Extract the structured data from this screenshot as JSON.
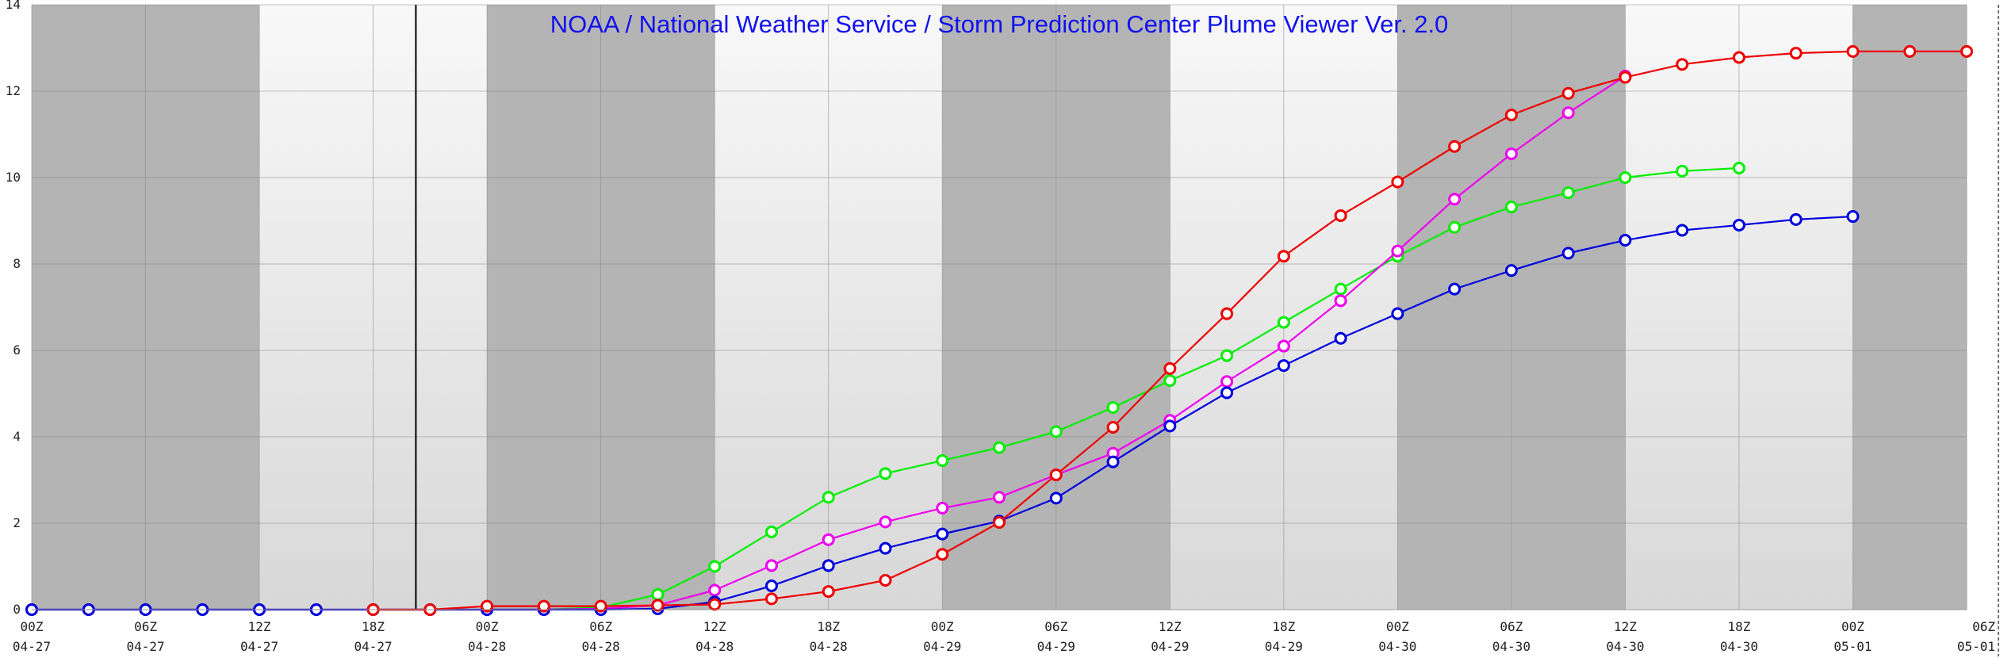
{
  "chart_data": {
    "type": "line",
    "title": "NOAA / National Weather Service / Storm Prediction Center Plume Viewer Ver. 2.0",
    "xlabel": "",
    "ylabel": "",
    "ylim": [
      0,
      14
    ],
    "y_ticks": [
      0,
      2,
      4,
      6,
      8,
      10,
      12,
      14
    ],
    "y_tick_labels": [
      "0",
      "2",
      "4",
      "6",
      "8",
      "10",
      "12",
      "14"
    ],
    "x_unit": "hours",
    "xlim": [
      0,
      102
    ],
    "x_ticks": [
      {
        "x": 0,
        "time": "00Z",
        "date": "04-27"
      },
      {
        "x": 6,
        "time": "06Z",
        "date": "04-27"
      },
      {
        "x": 12,
        "time": "12Z",
        "date": "04-27"
      },
      {
        "x": 18,
        "time": "18Z",
        "date": "04-27"
      },
      {
        "x": 24,
        "time": "00Z",
        "date": "04-28"
      },
      {
        "x": 30,
        "time": "06Z",
        "date": "04-28"
      },
      {
        "x": 36,
        "time": "12Z",
        "date": "04-28"
      },
      {
        "x": 42,
        "time": "18Z",
        "date": "04-28"
      },
      {
        "x": 48,
        "time": "00Z",
        "date": "04-29"
      },
      {
        "x": 54,
        "time": "06Z",
        "date": "04-29"
      },
      {
        "x": 60,
        "time": "12Z",
        "date": "04-29"
      },
      {
        "x": 66,
        "time": "18Z",
        "date": "04-29"
      },
      {
        "x": 72,
        "time": "00Z",
        "date": "04-30"
      },
      {
        "x": 78,
        "time": "06Z",
        "date": "04-30"
      },
      {
        "x": 84,
        "time": "12Z",
        "date": "04-30"
      },
      {
        "x": 90,
        "time": "18Z",
        "date": "04-30"
      },
      {
        "x": 96,
        "time": "00Z",
        "date": "05-01"
      },
      {
        "x": 102,
        "time": "06Z",
        "date": "05-01"
      }
    ],
    "night_shading": [
      [
        0,
        12
      ],
      [
        24,
        36
      ],
      [
        48,
        60
      ],
      [
        72,
        84
      ],
      [
        96,
        102
      ]
    ],
    "marker_line_x": 20.25,
    "grid": true,
    "series": [
      {
        "color": "#00ee00",
        "points": [
          [
            0,
            0
          ],
          [
            3,
            0
          ],
          [
            6,
            0
          ],
          [
            9,
            0
          ],
          [
            12,
            0
          ],
          [
            15,
            0
          ],
          [
            18,
            0
          ],
          [
            21,
            0
          ],
          [
            24,
            0
          ],
          [
            27,
            0
          ],
          [
            30,
            0.05
          ],
          [
            33,
            0.35
          ],
          [
            36,
            1.0
          ],
          [
            39,
            1.8
          ],
          [
            42,
            2.6
          ],
          [
            45,
            3.15
          ],
          [
            48,
            3.45
          ],
          [
            51,
            3.75
          ],
          [
            54,
            4.12
          ],
          [
            57,
            4.68
          ],
          [
            60,
            5.3
          ],
          [
            63,
            5.88
          ],
          [
            66,
            6.65
          ],
          [
            69,
            7.42
          ],
          [
            72,
            8.18
          ],
          [
            75,
            8.85
          ],
          [
            78,
            9.32
          ],
          [
            81,
            9.65
          ],
          [
            84,
            10.0
          ],
          [
            87,
            10.15
          ],
          [
            90,
            10.22
          ]
        ]
      },
      {
        "color": "#ee00ee",
        "points": [
          [
            0,
            0
          ],
          [
            3,
            0
          ],
          [
            6,
            0
          ],
          [
            9,
            0
          ],
          [
            12,
            0
          ],
          [
            15,
            0
          ],
          [
            18,
            0
          ],
          [
            21,
            0
          ],
          [
            24,
            0
          ],
          [
            27,
            0
          ],
          [
            30,
            0.02
          ],
          [
            33,
            0.1
          ],
          [
            36,
            0.45
          ],
          [
            39,
            1.02
          ],
          [
            42,
            1.62
          ],
          [
            45,
            2.03
          ],
          [
            48,
            2.35
          ],
          [
            51,
            2.6
          ],
          [
            54,
            3.12
          ],
          [
            57,
            3.62
          ],
          [
            60,
            4.38
          ],
          [
            63,
            5.28
          ],
          [
            66,
            6.1
          ],
          [
            69,
            7.15
          ],
          [
            72,
            8.3
          ],
          [
            75,
            9.5
          ],
          [
            78,
            10.55
          ],
          [
            81,
            11.5
          ],
          [
            84,
            12.35
          ]
        ]
      },
      {
        "color": "#0000dd",
        "points": [
          [
            0,
            0
          ],
          [
            3,
            0
          ],
          [
            6,
            0
          ],
          [
            9,
            0
          ],
          [
            12,
            0
          ],
          [
            15,
            0
          ],
          [
            18,
            0
          ],
          [
            21,
            0
          ],
          [
            24,
            0
          ],
          [
            27,
            0
          ],
          [
            30,
            0
          ],
          [
            33,
            0.02
          ],
          [
            36,
            0.18
          ],
          [
            39,
            0.55
          ],
          [
            42,
            1.02
          ],
          [
            45,
            1.42
          ],
          [
            48,
            1.75
          ],
          [
            51,
            2.05
          ],
          [
            54,
            2.58
          ],
          [
            57,
            3.42
          ],
          [
            60,
            4.25
          ],
          [
            63,
            5.02
          ],
          [
            66,
            5.65
          ],
          [
            69,
            6.28
          ],
          [
            72,
            6.85
          ],
          [
            75,
            7.42
          ],
          [
            78,
            7.85
          ],
          [
            81,
            8.25
          ],
          [
            84,
            8.55
          ],
          [
            87,
            8.78
          ],
          [
            90,
            8.9
          ],
          [
            93,
            9.03
          ],
          [
            96,
            9.1
          ]
        ]
      },
      {
        "color": "#ee0000",
        "points": [
          [
            18,
            0
          ],
          [
            21,
            0
          ],
          [
            24,
            0.08
          ],
          [
            27,
            0.08
          ],
          [
            30,
            0.08
          ],
          [
            33,
            0.1
          ],
          [
            36,
            0.12
          ],
          [
            39,
            0.25
          ],
          [
            42,
            0.42
          ],
          [
            45,
            0.68
          ],
          [
            48,
            1.28
          ],
          [
            51,
            2.02
          ],
          [
            54,
            3.12
          ],
          [
            57,
            4.22
          ],
          [
            60,
            5.58
          ],
          [
            63,
            6.85
          ],
          [
            66,
            8.18
          ],
          [
            69,
            9.12
          ],
          [
            72,
            9.9
          ],
          [
            75,
            10.72
          ],
          [
            78,
            11.45
          ],
          [
            81,
            11.95
          ],
          [
            84,
            12.32
          ],
          [
            87,
            12.62
          ],
          [
            90,
            12.78
          ],
          [
            93,
            12.88
          ],
          [
            96,
            12.92
          ],
          [
            99,
            12.92
          ],
          [
            102,
            12.92
          ]
        ]
      }
    ]
  }
}
